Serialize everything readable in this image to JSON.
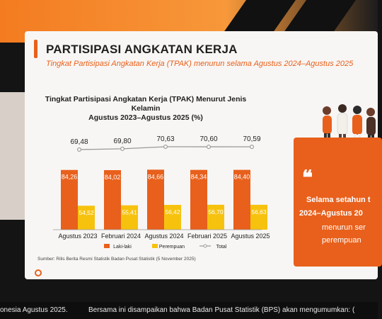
{
  "slide": {
    "title": "PARTISIPASI ANGKATAN KERJA",
    "subtitle": "Tingkat Partisipasi Angkatan Kerja (TPAK) menurun selama Agustus 2024–Agustus 2025",
    "source": "Sumber: Rilis Berita Resmi Statistik Badan Pusat Statistik (5 November 2025)"
  },
  "quote": {
    "line1": "Selama setahun t",
    "line2": "2024–Agustus 20",
    "line3": "menurun ser",
    "line4": "perempuan"
  },
  "ticker": {
    "left": "onesia Agustus 2025.",
    "right": "Bersama ini disampaikan bahwa Badan Pusat Statistik (BPS) akan mengumumkan: ("
  },
  "chart_data": {
    "type": "bar",
    "title_line1": "Tingkat Partisipasi Angkatan Kerja (TPAK) Menurut Jenis Kelamin",
    "title_line2": "Agustus 2023–Agustus 2025 (%)",
    "categories": [
      "Agustus 2023",
      "Februari 2024",
      "Agustus 2024",
      "Februari 2025",
      "Agustus 2025"
    ],
    "series": [
      {
        "name": "Laki-laki",
        "values": [
          84.26,
          84.02,
          84.66,
          84.34,
          84.4
        ],
        "color": "#e8601c"
      },
      {
        "name": "Perempuan",
        "values": [
          54.52,
          55.41,
          56.42,
          56.7,
          56.63
        ],
        "color": "#f7c20e"
      },
      {
        "name": "Total",
        "values": [
          69.48,
          69.8,
          70.63,
          70.6,
          70.59
        ],
        "color": "#9a9a9a",
        "kind": "line"
      }
    ],
    "labels": {
      "male": [
        "84,26",
        "84,02",
        "84,66",
        "84,34",
        "84,40"
      ],
      "female": [
        "54,52",
        "55,41",
        "56,42",
        "56,70",
        "56,63"
      ],
      "total": [
        "69,48",
        "69,80",
        "70,63",
        "70,60",
        "70,59"
      ]
    },
    "legend_position": "bottom"
  }
}
